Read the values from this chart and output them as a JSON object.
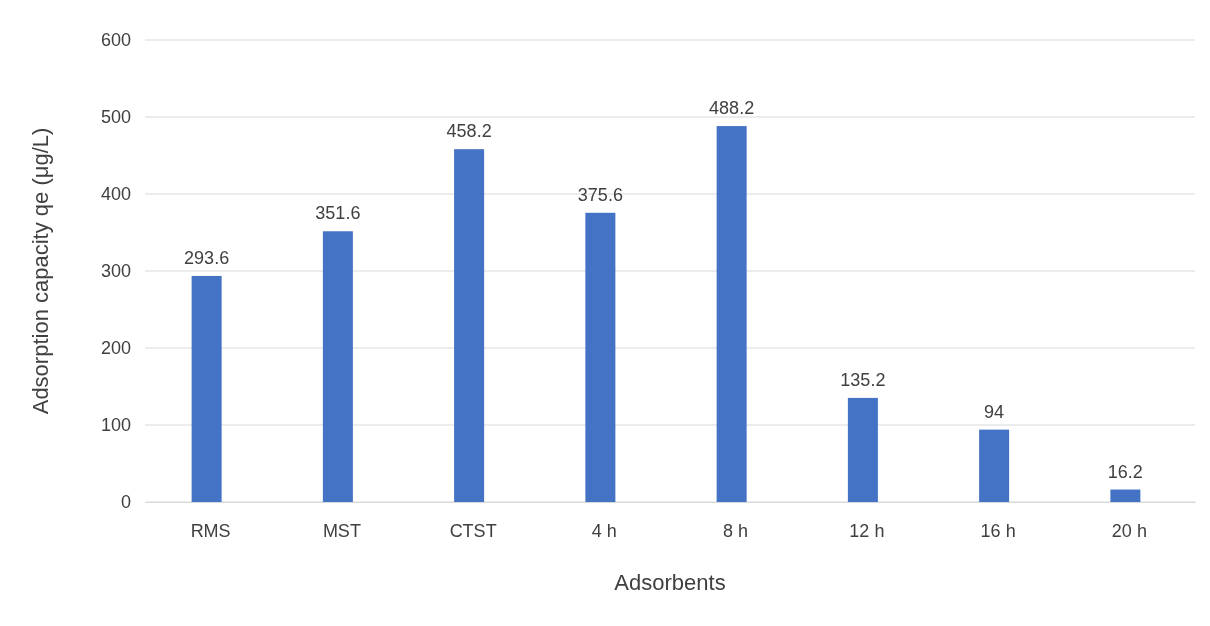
{
  "chart_data": {
    "type": "bar",
    "xlabel": "Adsorbents",
    "ylabel": "Adsorption  capacity qe (μg/L)",
    "categories": [
      "RMS",
      "MST",
      "CTST",
      "4 h",
      "8 h",
      "12 h",
      "16 h",
      "20 h"
    ],
    "values": [
      293.6,
      351.6,
      458.2,
      375.6,
      488.2,
      135.2,
      94,
      16.2
    ],
    "color": "#4472c4",
    "ylim": [
      0,
      600
    ],
    "yticks": [
      0,
      100,
      200,
      300,
      400,
      500,
      600
    ],
    "grid": "y",
    "data_labels": true
  }
}
